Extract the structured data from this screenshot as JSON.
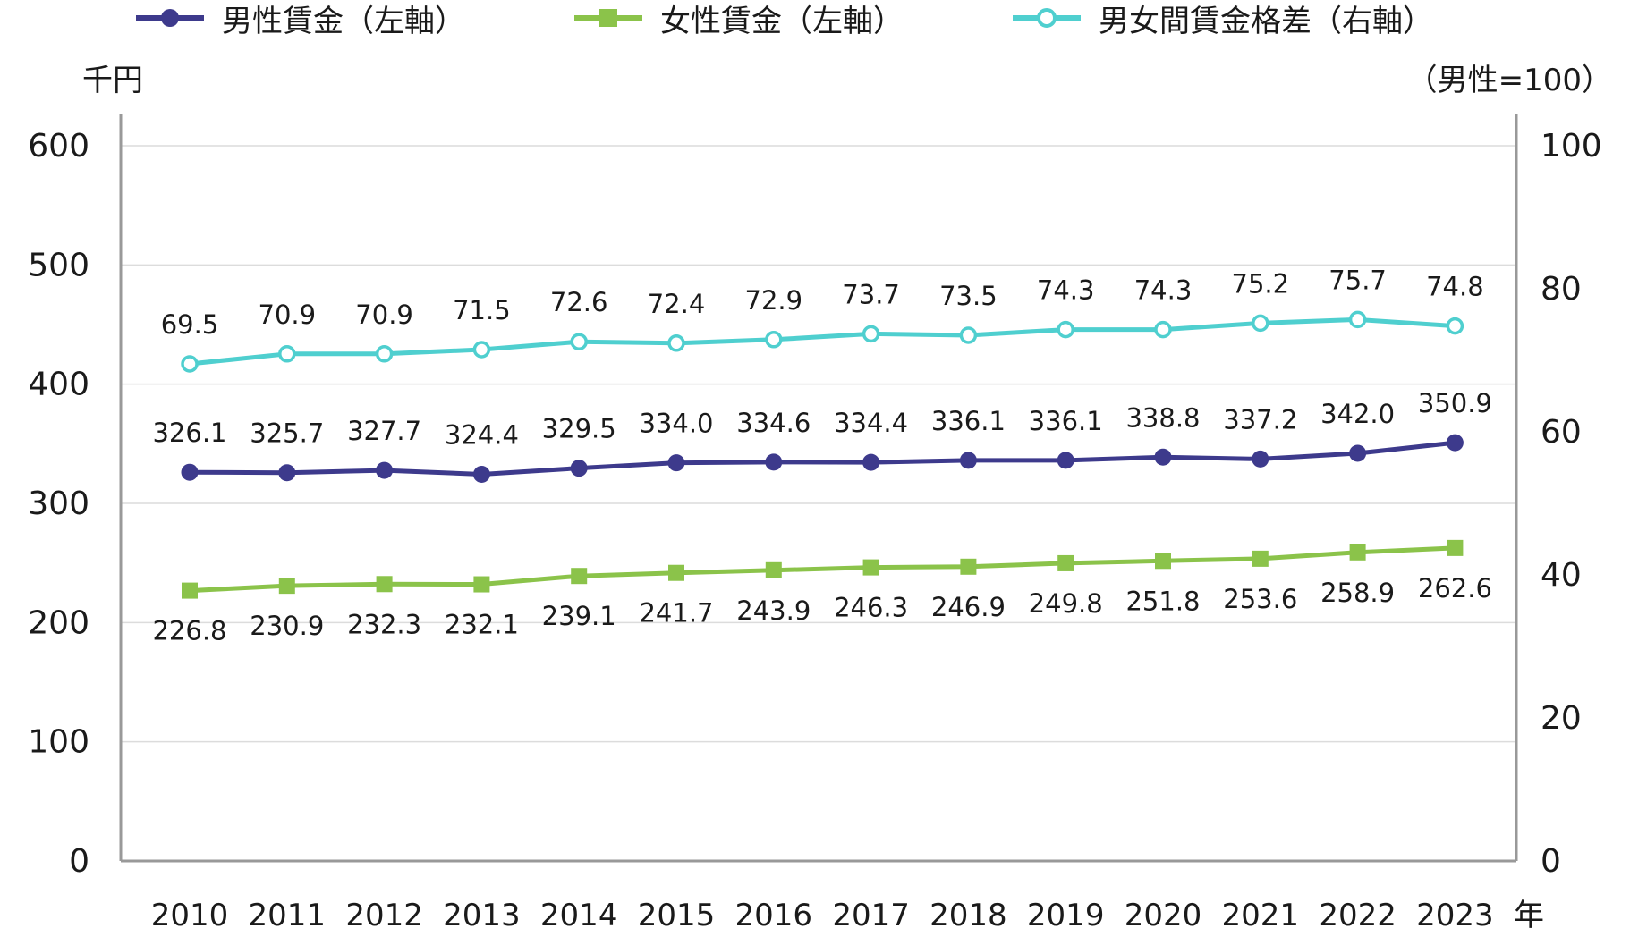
{
  "chart_data": {
    "type": "line",
    "title": "",
    "left_unit": "千円",
    "right_unit": "（男性=100）",
    "x_suffix": "年",
    "x": [
      "2010",
      "2011",
      "2012",
      "2013",
      "2014",
      "2015",
      "2016",
      "2017",
      "2018",
      "2019",
      "2020",
      "2021",
      "2022",
      "2023"
    ],
    "ylim_left": [
      0,
      600
    ],
    "yticks_left": [
      "0",
      "100",
      "200",
      "300",
      "400",
      "500",
      "600"
    ],
    "ylim_right": [
      0,
      100
    ],
    "yticks_right": [
      "0",
      "20",
      "40",
      "60",
      "80",
      "100"
    ],
    "grid": true,
    "legend_position": "top",
    "series": [
      {
        "name": "男性賃金（左軸）",
        "axis": "left",
        "marker": "circle",
        "color": "#3d3a8c",
        "values": [
          326.1,
          325.7,
          327.7,
          324.4,
          329.5,
          334.0,
          334.6,
          334.4,
          336.1,
          336.1,
          338.8,
          337.2,
          342.0,
          350.9
        ],
        "labels": [
          "326.1",
          "325.7",
          "327.7",
          "324.4",
          "329.5",
          "334.0",
          "334.6",
          "334.4",
          "336.1",
          "336.1",
          "338.8",
          "337.2",
          "342.0",
          "350.9"
        ]
      },
      {
        "name": "女性賃金（左軸）",
        "axis": "left",
        "marker": "square",
        "color": "#8bc34a",
        "values": [
          226.8,
          230.9,
          232.3,
          232.1,
          239.1,
          241.7,
          243.9,
          246.3,
          246.9,
          249.8,
          251.8,
          253.6,
          258.9,
          262.6
        ],
        "labels": [
          "226.8",
          "230.9",
          "232.3",
          "232.1",
          "239.1",
          "241.7",
          "243.9",
          "246.3",
          "246.9",
          "249.8",
          "251.8",
          "253.6",
          "258.9",
          "262.6"
        ]
      },
      {
        "name": "男女間賃金格差（右軸）",
        "axis": "right",
        "marker": "hollow-circle",
        "color": "#4fcfcf",
        "values": [
          69.5,
          70.9,
          70.9,
          71.5,
          72.6,
          72.4,
          72.9,
          73.7,
          73.5,
          74.3,
          74.3,
          75.2,
          75.7,
          74.8
        ],
        "labels": [
          "69.5",
          "70.9",
          "70.9",
          "71.5",
          "72.6",
          "72.4",
          "72.9",
          "73.7",
          "73.5",
          "74.3",
          "74.3",
          "75.2",
          "75.7",
          "74.8"
        ]
      }
    ]
  }
}
